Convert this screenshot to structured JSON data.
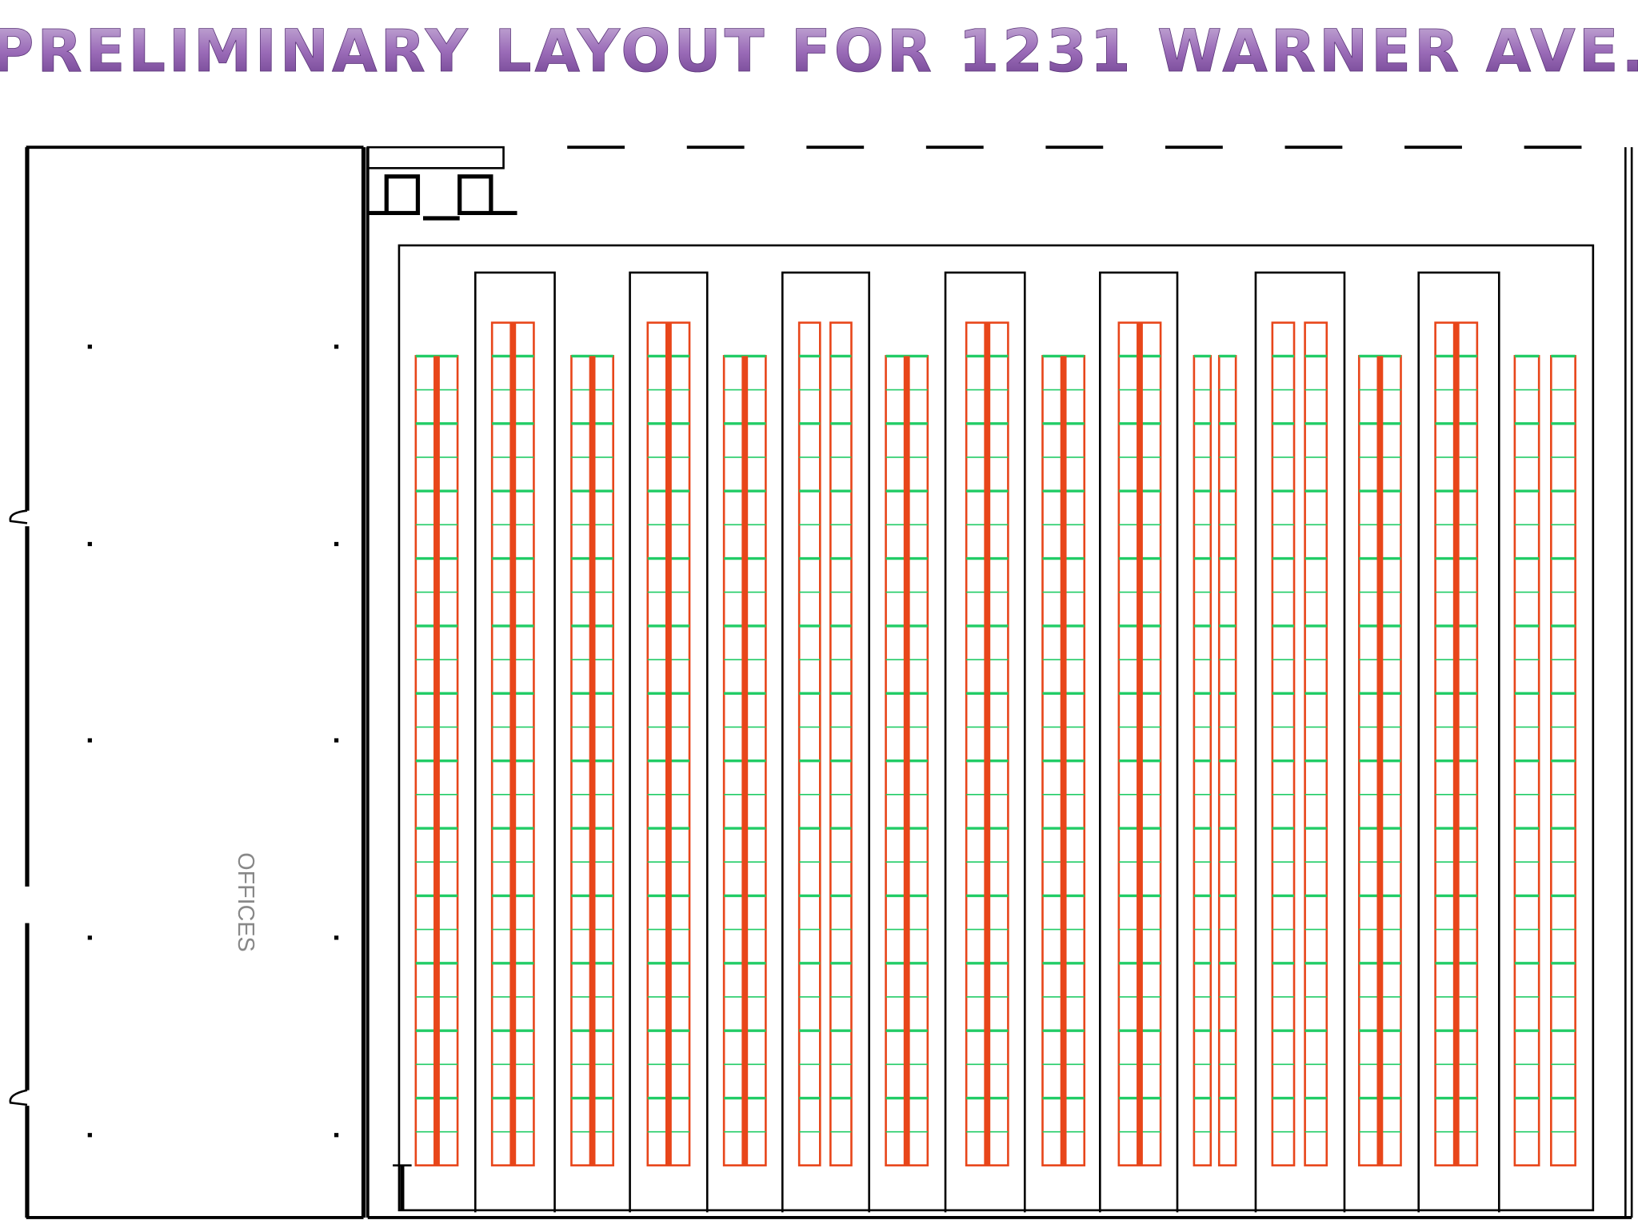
{
  "title": "PRELIMINARY LAYOUT FOR 1231 WARNER AVE.",
  "rooms": [
    {
      "label": "OFFICES"
    }
  ]
}
